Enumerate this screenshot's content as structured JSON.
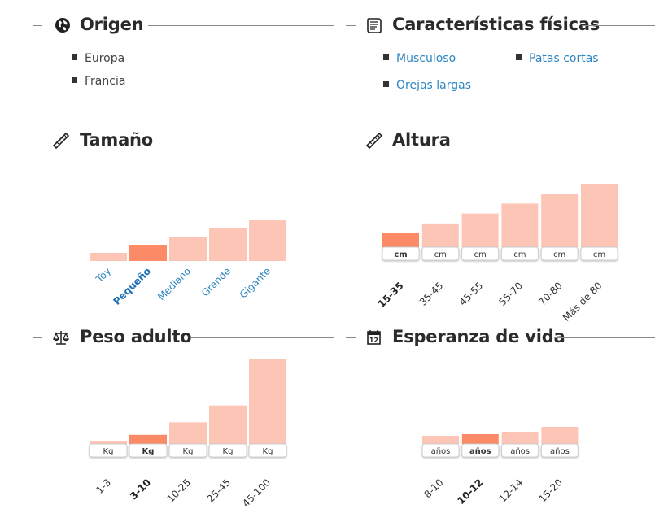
{
  "sections": {
    "origen": {
      "title": "Origen",
      "icon": "globe-icon",
      "items": [
        "Europa",
        "Francia"
      ]
    },
    "caracteristicas": {
      "title": "Características físicas",
      "icon": "scroll-icon",
      "items": [
        "Musculoso",
        "Patas cortas",
        "Orejas largas"
      ]
    },
    "tamano": {
      "title": "Tamaño",
      "icon": "ruler-icon"
    },
    "altura": {
      "title": "Altura",
      "icon": "ruler-icon"
    },
    "peso": {
      "title": "Peso adulto",
      "icon": "scale-icon"
    },
    "esperanza": {
      "title": "Esperanza de vida",
      "icon": "calendar-icon"
    }
  },
  "colors": {
    "bar": "#fcc5b5",
    "highlight": "#fc8a66",
    "link": "#2e86c1",
    "text": "#333333"
  },
  "chart_data": [
    {
      "id": "tamano",
      "type": "bar",
      "title": "Tamaño",
      "categories": [
        "Toy",
        "Pequeño",
        "Mediano",
        "Grande",
        "Gigante"
      ],
      "values": [
        1,
        2,
        3,
        4,
        5
      ],
      "selected": "Pequeño",
      "ylim": [
        0,
        5
      ]
    },
    {
      "id": "altura",
      "type": "bar",
      "title": "Altura",
      "unit": "cm",
      "categories": [
        "15-35",
        "35-45",
        "45-55",
        "55-70",
        "70-80",
        "Más de 80"
      ],
      "values": [
        1,
        2,
        3,
        4,
        5,
        6
      ],
      "selected": "15-35",
      "ylim": [
        0,
        6
      ]
    },
    {
      "id": "peso",
      "type": "bar",
      "title": "Peso adulto",
      "unit": "Kg",
      "categories": [
        "1-3",
        "3-10",
        "10-25",
        "25-45",
        "45-100"
      ],
      "values": [
        3,
        10,
        25,
        45,
        100
      ],
      "selected": "3-10",
      "ylim": [
        0,
        100
      ]
    },
    {
      "id": "esperanza",
      "type": "bar",
      "title": "Esperanza de vida",
      "unit": "años",
      "categories": [
        "8-10",
        "10-12",
        "12-14",
        "15-20"
      ],
      "values": [
        10,
        12,
        14,
        20
      ],
      "selected": "10-12",
      "ylim": [
        0,
        40
      ]
    }
  ]
}
